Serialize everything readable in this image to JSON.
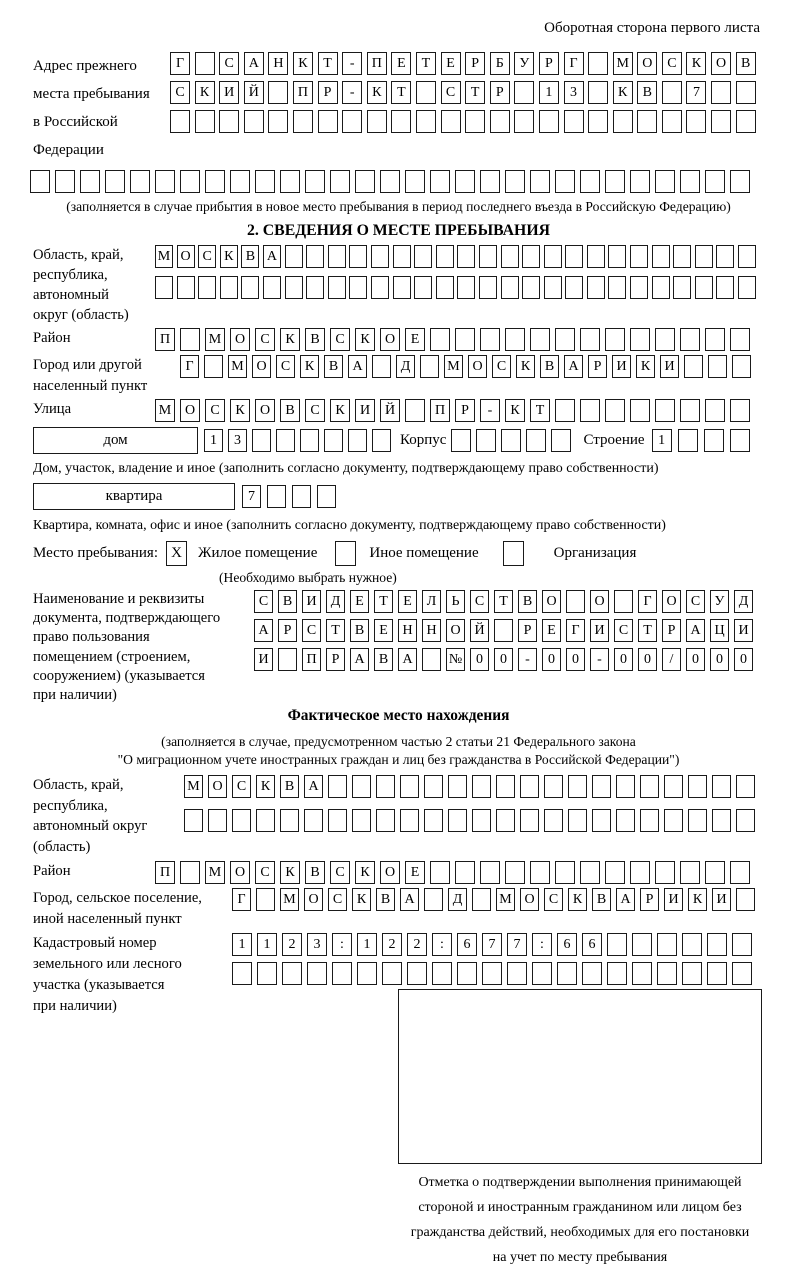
{
  "page": {
    "header_note": "Оборотная сторона первого листа"
  },
  "prev_address": {
    "label": "Адрес прежнего\nместа пребывания\nв Российской\nФедерации",
    "row1": {
      "text": "Г САНКТ-ПЕТЕРБУРГ МОСКОВ",
      "len": 24
    },
    "row2": {
      "text": "СКИЙ ПР-КТ СТР 13 КВ 7",
      "len": 24
    },
    "row3": {
      "text": "",
      "len": 24
    },
    "row4": {
      "text": "",
      "len": 29
    },
    "caption": "(заполняется в случае прибытия в новое место пребывания в период последнего въезда в Российскую Федерацию)"
  },
  "section2": {
    "title": "2. СВЕДЕНИЯ О МЕСТЕ ПРЕБЫВАНИЯ",
    "region_label": "Область, край,\nреспублика,\nавтономный\nокруг (область)",
    "region_row1": {
      "text": "МОСКВА",
      "len": 28
    },
    "region_row2": {
      "text": "",
      "len": 28
    },
    "district_label": "Район",
    "district_row": {
      "text": "П МОСКВСКОЕ",
      "len": 24
    },
    "city_label": "Город или другой\nнаселенный пункт",
    "city_row": {
      "text": "Г МОСКВА Д МОСКВАРИКИ",
      "len": 24
    },
    "street_label": "Улица",
    "street_row": {
      "text": "МОСКОВСКИЙ ПР-КТ",
      "len": 24
    },
    "house_box_label": "дом",
    "house_row": {
      "text": "13",
      "len": 8
    },
    "korpus_label": "Корпус",
    "korpus_row": {
      "text": "",
      "len": 5
    },
    "stroenie_label": "Строение",
    "stroenie_row": {
      "text": "1",
      "len": 4
    },
    "house_caption": "Дом, участок, владение и иное (заполнить согласно документу, подтверждающему право собственности)",
    "apartment_box_label": "квартира",
    "apartment_row": {
      "text": "7",
      "len": 4
    },
    "apartment_caption": "Квартира, комната, офис и иное (заполнить согласно документу, подтверждающему право собственности)",
    "place_label": "Место пребывания:",
    "place_options": [
      {
        "label": "Жилое помещение",
        "mark": "X"
      },
      {
        "label": "Иное помещение",
        "mark": ""
      },
      {
        "label": "Организация",
        "mark": ""
      }
    ],
    "place_note": "(Необходимо выбрать нужное)",
    "doc_label": "Наименование и реквизиты\nдокумента, подтверждающего\nправо пользования\nпомещением (строением,\nсооружением) (указывается\nпри наличии)",
    "doc_row1": {
      "text": "СВИДЕТЕЛЬСТВО О ГОСУД",
      "len": 21
    },
    "doc_row2": {
      "text": "АРСТВЕННОЙ РЕГИСТРАЦИ",
      "len": 21
    },
    "doc_row3": {
      "text": "И ПРАВА №00-00-00/000",
      "len": 21
    }
  },
  "actual": {
    "title": "Фактическое место нахождения",
    "caption": "(заполняется в случае, предусмотренном частью 2 статьи 21 Федерального закона\n\"О миграционном учете иностранных граждан и лиц без гражданства в Российской Федерации\")",
    "region_label": "Область, край,\nреспублика,\nавтономный округ\n(область)",
    "region_row1": {
      "text": "МОСКВА",
      "len": 24
    },
    "region_row2": {
      "text": "",
      "len": 24
    },
    "district_label": "Район",
    "district_row": {
      "text": "П МОСКВСКОЕ",
      "len": 24
    },
    "city_label": "Город, сельское поселение,\nиной населенный пункт",
    "city_row": {
      "text": "Г МОСКВА Д МОСКВАРИКИ",
      "len": 22
    },
    "cadastral_label": "Кадастровый номер\nземельного или лесного\nучастка (указывается\nпри наличии)",
    "cadastral_row1": {
      "text": "1123:122:677:66",
      "len": 21
    },
    "cadastral_row2": {
      "text": "",
      "len": 21
    },
    "stamp_caption": "Отметка о подтверждении выполнения принимающей\nстороной и иностранным гражданином или лицом без\nгражданства действий, необходимых для его постановки\nна учет по месту пребывания"
  }
}
